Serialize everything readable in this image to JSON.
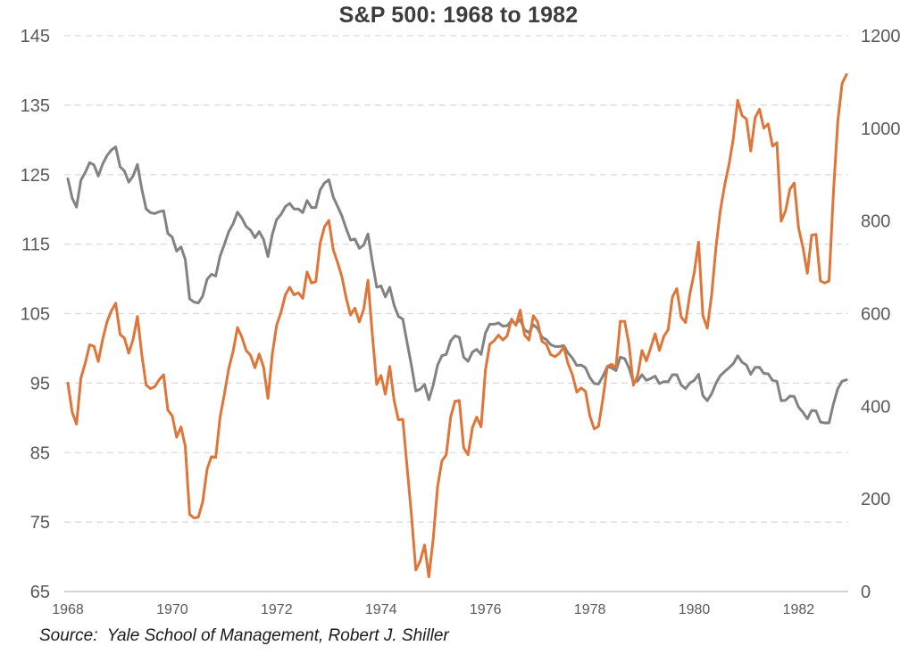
{
  "page": {
    "title_label": "S&P 500: 1968 to 1982",
    "source_note": "Source:  Yale School of Management, Robert J. Shiller"
  },
  "chart_data": {
    "type": "line",
    "title": "S&P 500: 1968 to 1982",
    "legend": "none",
    "grid": "horizontal-dashed",
    "grid_color": "#d9d9d9",
    "axis_line_color": "#c6c6c6",
    "tick_label_color": "#595959",
    "title_color": "#3d3d3d",
    "x_axis": {
      "start_year": 1968,
      "end_year": 1982,
      "frequency": "monthly",
      "tick_labels": [
        "1968",
        "1970",
        "1972",
        "1974",
        "1976",
        "1978",
        "1980",
        "1982"
      ]
    },
    "left_axis": {
      "min": 65,
      "max": 145,
      "ticks": [
        145,
        135,
        125,
        115,
        105,
        95,
        85,
        75,
        65
      ]
    },
    "right_axis": {
      "min": 0,
      "max": 1200,
      "ticks": [
        1200,
        1000,
        800,
        600,
        400,
        200,
        0
      ]
    },
    "series": [
      {
        "name": "gray",
        "axis": "right",
        "color": "#828282",
        "values": [
          891,
          849,
          830,
          888,
          905,
          926,
          921,
          897,
          923,
          941,
          953,
          960,
          917,
          908,
          884,
          897,
          922,
          869,
          826,
          818,
          816,
          820,
          822,
          773,
          765,
          735,
          744,
          717,
          632,
          625,
          623,
          638,
          674,
          685,
          681,
          724,
          750,
          777,
          794,
          819,
          806,
          788,
          780,
          764,
          777,
          760,
          723,
          771,
          803,
          814,
          831,
          838,
          826,
          826,
          818,
          844,
          829,
          829,
          867,
          882,
          889,
          852,
          832,
          811,
          783,
          759,
          761,
          741,
          748,
          772,
          712,
          657,
          660,
          636,
          657,
          618,
          594,
          588,
          537,
          488,
          433,
          437,
          447,
          414,
          446,
          489,
          509,
          512,
          541,
          552,
          549,
          506,
          497,
          517,
          523,
          512,
          558,
          577,
          577,
          580,
          573,
          574,
          585,
          578,
          587,
          565,
          559,
          576,
          568,
          549,
          544,
          533,
          529,
          529,
          531,
          515,
          504,
          488,
          489,
          483,
          462,
          449,
          448,
          465,
          485,
          483,
          477,
          506,
          503,
          483,
          452,
          455,
          468,
          456,
          460,
          465,
          449,
          453,
          453,
          468,
          468,
          446,
          438,
          450,
          456,
          469,
          423,
          412,
          427,
          450,
          466,
          475,
          483,
          492,
          509,
          495,
          489,
          469,
          484,
          484,
          471,
          470,
          456,
          454,
          412,
          413,
          422,
          421,
          398,
          387,
          373,
          391,
          390,
          366,
          364,
          364,
          405,
          438,
          454,
          457
        ]
      },
      {
        "name": "orange",
        "axis": "left",
        "color": "#df7538",
        "values": [
          95.0,
          90.8,
          89.1,
          95.7,
          97.9,
          100.5,
          100.3,
          98.1,
          101.3,
          103.8,
          105.4,
          106.5,
          102.0,
          101.5,
          99.3,
          101.3,
          104.6,
          99.1,
          94.7,
          94.2,
          94.5,
          95.5,
          96.2,
          91.1,
          90.3,
          87.2,
          88.7,
          85.9,
          76.1,
          75.6,
          75.7,
          77.9,
          82.6,
          84.4,
          84.3,
          90.1,
          93.5,
          97.1,
          99.6,
          103.0,
          101.6,
          99.7,
          99.0,
          97.2,
          99.2,
          97.3,
          92.8,
          99.2,
          103.3,
          105.2,
          107.7,
          108.8,
          107.7,
          108.0,
          107.2,
          111.0,
          109.4,
          109.6,
          115.1,
          117.5,
          118.4,
          114.2,
          112.4,
          110.3,
          107.2,
          104.8,
          105.8,
          103.8,
          105.6,
          109.8,
          102.0,
          94.8,
          96.1,
          93.4,
          97.4,
          92.5,
          89.7,
          89.8,
          82.8,
          76.0,
          68.1,
          69.4,
          71.7,
          67.1,
          72.6,
          80.1,
          83.8,
          84.7,
          90.1,
          92.4,
          92.5,
          85.7,
          84.7,
          88.6,
          90.1,
          88.7,
          96.9,
          100.6,
          101.1,
          101.9,
          101.2,
          101.8,
          104.2,
          103.3,
          105.5,
          101.9,
          101.2,
          104.7,
          103.8,
          101.0,
          100.6,
          99.1,
          98.8,
          99.3,
          100.2,
          97.8,
          96.2,
          93.7,
          94.3,
          93.8,
          90.3,
          88.4,
          88.8,
          92.7,
          97.4,
          97.7,
          97.2,
          103.9,
          103.9,
          100.6,
          94.7,
          96.1,
          99.7,
          98.2,
          100.1,
          102.1,
          99.7,
          101.7,
          102.7,
          107.4,
          108.6,
          104.5,
          103.7,
          107.8,
          110.9,
          115.3,
          104.7,
          102.9,
          107.7,
          114.6,
          119.8,
          123.5,
          126.5,
          130.2,
          135.7,
          133.5,
          133.0,
          128.4,
          133.2,
          134.4,
          131.7,
          132.3,
          129.1,
          129.6,
          118.3,
          119.8,
          122.9,
          123.8,
          117.3,
          114.5,
          110.8,
          116.3,
          116.4,
          109.7,
          109.4,
          109.7,
          122.4,
          132.7,
          138.1,
          139.4
        ]
      }
    ]
  }
}
